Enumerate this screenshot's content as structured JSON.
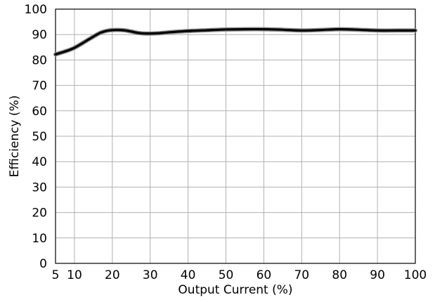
{
  "chart_data": {
    "type": "line",
    "title": "",
    "xlabel": "Output Current (%)",
    "ylabel": "Efficiency (%)",
    "xlim": [
      5,
      100
    ],
    "ylim": [
      0,
      100
    ],
    "xticks": [
      5,
      10,
      20,
      30,
      40,
      50,
      60,
      70,
      80,
      90,
      100
    ],
    "yticks": [
      0,
      10,
      20,
      30,
      40,
      50,
      60,
      70,
      80,
      90,
      100
    ],
    "grid": true,
    "line_color": "#000000",
    "series": [
      {
        "x": [
          5,
          8,
          10,
          12,
          15,
          17,
          19,
          21,
          23,
          25,
          27,
          29,
          32,
          35,
          40,
          45,
          50,
          55,
          60,
          65,
          70,
          75,
          80,
          85,
          90,
          95,
          100
        ],
        "y": [
          82.2,
          83.6,
          84.8,
          86.5,
          89.2,
          90.8,
          91.6,
          91.8,
          91.7,
          91.2,
          90.6,
          90.4,
          90.5,
          90.9,
          91.4,
          91.7,
          92.0,
          92.1,
          92.1,
          91.9,
          91.6,
          91.8,
          92.1,
          91.9,
          91.6,
          91.6,
          91.6
        ]
      }
    ]
  }
}
